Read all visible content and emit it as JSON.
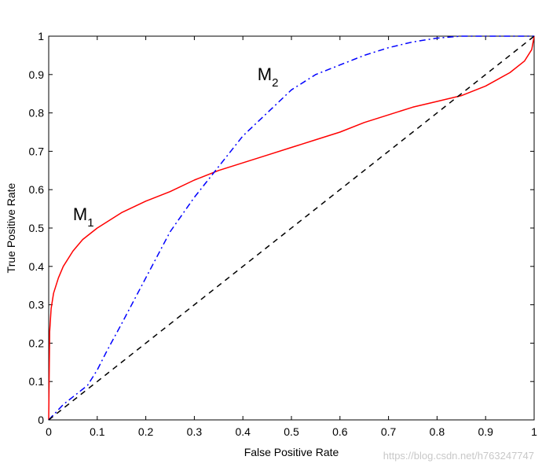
{
  "chart_data": {
    "type": "line",
    "title": "",
    "xlabel": "False Positive Rate",
    "ylabel": "True Positive Rate",
    "xlim": [
      0,
      1
    ],
    "ylim": [
      0,
      1
    ],
    "xticks": [
      "0",
      "0.1",
      "0.2",
      "0.3",
      "0.4",
      "0.5",
      "0.6",
      "0.7",
      "0.8",
      "0.9",
      "1"
    ],
    "yticks": [
      "0",
      "0.1",
      "0.2",
      "0.3",
      "0.4",
      "0.5",
      "0.6",
      "0.7",
      "0.8",
      "0.9",
      "1"
    ],
    "grid": false,
    "legend": "none",
    "series": [
      {
        "label_main": "M",
        "label_sub": "1",
        "color": "#ff0000",
        "style": "solid",
        "x": [
          0,
          0.002,
          0.005,
          0.01,
          0.02,
          0.03,
          0.05,
          0.07,
          0.1,
          0.15,
          0.2,
          0.25,
          0.3,
          0.35,
          0.4,
          0.45,
          0.5,
          0.55,
          0.6,
          0.65,
          0.7,
          0.75,
          0.8,
          0.85,
          0.9,
          0.95,
          0.98,
          0.995,
          1
        ],
        "y": [
          0,
          0.23,
          0.29,
          0.33,
          0.37,
          0.4,
          0.44,
          0.47,
          0.5,
          0.54,
          0.57,
          0.595,
          0.625,
          0.65,
          0.67,
          0.69,
          0.71,
          0.73,
          0.75,
          0.775,
          0.795,
          0.815,
          0.83,
          0.845,
          0.87,
          0.905,
          0.935,
          0.965,
          1
        ]
      },
      {
        "label_main": "M",
        "label_sub": "2",
        "color": "#0000ff",
        "style": "dashdot",
        "x": [
          0,
          0.03,
          0.05,
          0.08,
          0.1,
          0.12,
          0.15,
          0.2,
          0.25,
          0.3,
          0.35,
          0.4,
          0.45,
          0.5,
          0.55,
          0.6,
          0.65,
          0.7,
          0.75,
          0.8,
          0.85,
          0.9,
          0.95,
          1
        ],
        "y": [
          0,
          0.04,
          0.06,
          0.09,
          0.13,
          0.18,
          0.25,
          0.37,
          0.49,
          0.58,
          0.66,
          0.74,
          0.8,
          0.86,
          0.9,
          0.925,
          0.95,
          0.97,
          0.985,
          0.995,
          1,
          1,
          1,
          1
        ]
      },
      {
        "color": "#000000",
        "style": "dashed",
        "x": [
          0,
          1
        ],
        "y": [
          0,
          1
        ]
      }
    ],
    "annotations": [
      {
        "main": "M",
        "sub": "1",
        "x": 0.05,
        "y": 0.52
      },
      {
        "main": "M",
        "sub": "2",
        "x": 0.43,
        "y": 0.885
      }
    ]
  },
  "watermark": "https://blog.csdn.net/h763247747"
}
